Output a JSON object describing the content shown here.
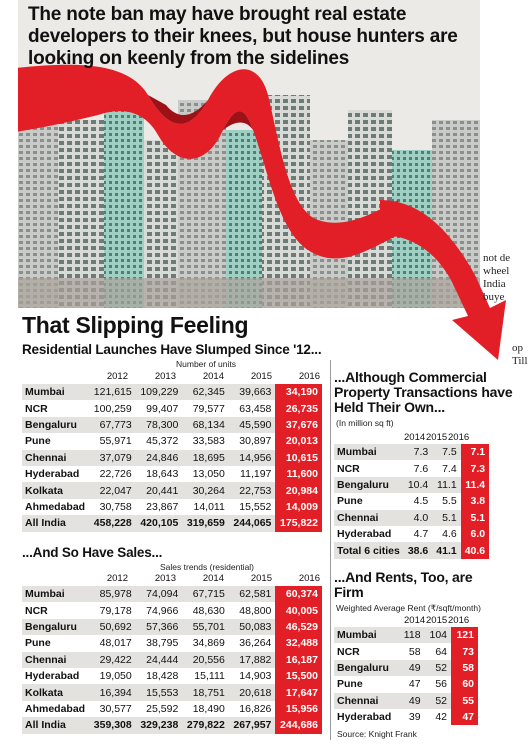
{
  "headline": "The note ban may have brought real estate developers to their knees, but house hunters are looking on keenly from the sidelines",
  "snippet_lines": [
    "not de",
    "wheel",
    "India",
    "buye"
  ],
  "snippet2_lines": [
    "op",
    "Till"
  ],
  "main_title": "That Slipping Feeling",
  "colors": {
    "accent": "#e21f26",
    "shade": "#e3e2df"
  },
  "chart_data": [
    {
      "type": "table",
      "title": "Residential Launches Have Slumped Since '12...",
      "unit": "Number of units",
      "years": [
        "2012",
        "2013",
        "2014",
        "2015",
        "2016"
      ],
      "rows": [
        {
          "city": "Mumbai",
          "values": [
            "121,615",
            "109,229",
            "62,345",
            "39,663",
            "34,190"
          ]
        },
        {
          "city": "NCR",
          "values": [
            "100,259",
            "99,407",
            "79,577",
            "63,458",
            "26,735"
          ]
        },
        {
          "city": "Bengaluru",
          "values": [
            "67,773",
            "78,300",
            "68,134",
            "45,590",
            "37,676"
          ]
        },
        {
          "city": "Pune",
          "values": [
            "55,971",
            "45,372",
            "33,583",
            "30,897",
            "20,013"
          ]
        },
        {
          "city": "Chennai",
          "values": [
            "37,079",
            "24,846",
            "18,695",
            "14,956",
            "10,615"
          ]
        },
        {
          "city": "Hyderabad",
          "values": [
            "22,726",
            "18,643",
            "13,050",
            "11,197",
            "11,600"
          ]
        },
        {
          "city": "Kolkata",
          "values": [
            "22,047",
            "20,441",
            "30,264",
            "22,753",
            "20,984"
          ]
        },
        {
          "city": "Ahmedabad",
          "values": [
            "30,758",
            "23,867",
            "14,011",
            "15,552",
            "14,009"
          ]
        },
        {
          "city": "All India",
          "values": [
            "458,228",
            "420,105",
            "319,659",
            "244,065",
            "175,822"
          ]
        }
      ]
    },
    {
      "type": "table",
      "title": "...And So Have Sales...",
      "unit": "Sales trends (residential)",
      "years": [
        "2012",
        "2013",
        "2014",
        "2015",
        "2016"
      ],
      "rows": [
        {
          "city": "Mumbai",
          "values": [
            "85,978",
            "74,094",
            "67,715",
            "62,581",
            "60,374"
          ]
        },
        {
          "city": "NCR",
          "values": [
            "79,178",
            "74,966",
            "48,630",
            "48,800",
            "40,005"
          ]
        },
        {
          "city": "Bengaluru",
          "values": [
            "50,692",
            "57,366",
            "55,701",
            "50,083",
            "46,529"
          ]
        },
        {
          "city": "Pune",
          "values": [
            "48,017",
            "38,795",
            "34,869",
            "36,264",
            "32,488"
          ]
        },
        {
          "city": "Chennai",
          "values": [
            "29,422",
            "24,444",
            "20,556",
            "17,882",
            "16,187"
          ]
        },
        {
          "city": "Hyderabad",
          "values": [
            "19,050",
            "18,428",
            "15,111",
            "14,903",
            "15,500"
          ]
        },
        {
          "city": "Kolkata",
          "values": [
            "16,394",
            "15,553",
            "18,751",
            "20,618",
            "17,647"
          ]
        },
        {
          "city": "Ahmedabad",
          "values": [
            "30,577",
            "25,592",
            "18,490",
            "16,826",
            "15,956"
          ]
        },
        {
          "city": "All India",
          "values": [
            "359,308",
            "329,238",
            "279,822",
            "267,957",
            "244,686"
          ]
        }
      ]
    },
    {
      "type": "table",
      "title": "...Although Commercial Property Transactions have Held Their Own...",
      "unit": "(In million sq ft)",
      "years": [
        "2014",
        "2015",
        "2016"
      ],
      "rows": [
        {
          "city": "Mumbai",
          "values": [
            "7.3",
            "7.5",
            "7.1"
          ]
        },
        {
          "city": "NCR",
          "values": [
            "7.6",
            "7.4",
            "7.3"
          ]
        },
        {
          "city": "Bengaluru",
          "values": [
            "10.4",
            "11.1",
            "11.4"
          ]
        },
        {
          "city": "Pune",
          "values": [
            "4.5",
            "5.5",
            "3.8"
          ]
        },
        {
          "city": "Chennai",
          "values": [
            "4.0",
            "5.1",
            "5.1"
          ]
        },
        {
          "city": "Hyderabad",
          "values": [
            "4.7",
            "4.6",
            "6.0"
          ]
        },
        {
          "city": "Total 6 cities",
          "values": [
            "38.6",
            "41.1",
            "40.6"
          ]
        }
      ]
    },
    {
      "type": "table",
      "title": "...And Rents, Too, are Firm",
      "unit": "Weighted Average Rent (₹/sqft/month)",
      "years": [
        "2014",
        "2015",
        "2016"
      ],
      "rows": [
        {
          "city": "Mumbai",
          "values": [
            "118",
            "104",
            "121"
          ]
        },
        {
          "city": "NCR",
          "values": [
            "58",
            "64",
            "73"
          ]
        },
        {
          "city": "Bengaluru",
          "values": [
            "49",
            "52",
            "58"
          ]
        },
        {
          "city": "Pune",
          "values": [
            "47",
            "56",
            "60"
          ]
        },
        {
          "city": "Chennai",
          "values": [
            "49",
            "52",
            "55"
          ]
        },
        {
          "city": "Hyderabad",
          "values": [
            "39",
            "42",
            "47"
          ]
        }
      ],
      "source": "Source: Knight Frank"
    }
  ]
}
